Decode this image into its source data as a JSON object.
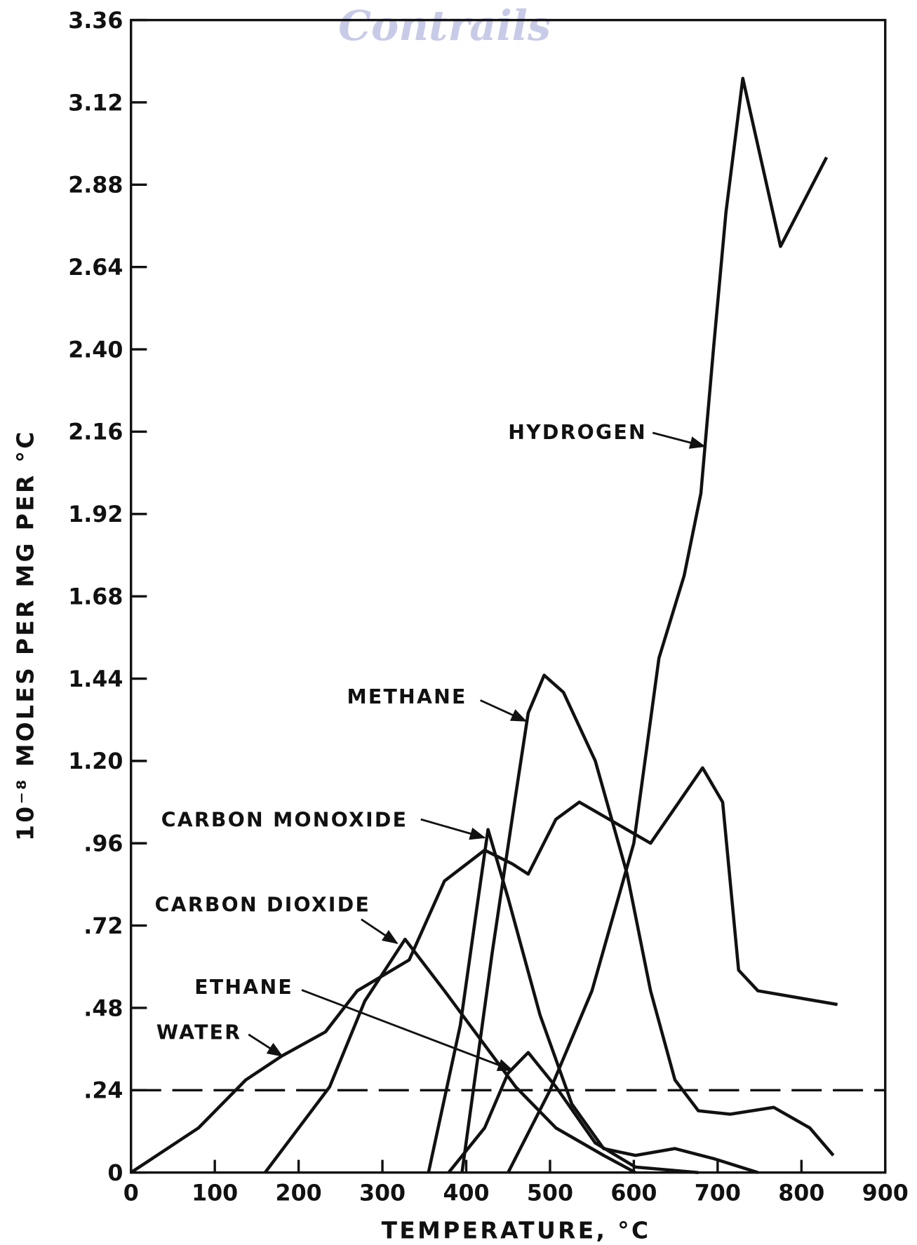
{
  "watermark": "Contrails",
  "chart_data": {
    "type": "line",
    "xlabel": "TEMPERATURE, °C",
    "ylabel": "10⁻⁸ MOLES PER MG PER °C",
    "xlim": [
      0,
      900
    ],
    "xticks": [
      0,
      100,
      200,
      300,
      400,
      500,
      600,
      700,
      800,
      900
    ],
    "ylim": [
      0,
      3.36
    ],
    "yticks": [
      0,
      {
        "value": 0.24,
        "label": ".24"
      },
      {
        "value": 0.48,
        "label": ".48"
      },
      {
        "value": 0.72,
        "label": ".72"
      },
      {
        "value": 0.96,
        "label": ".96"
      },
      {
        "value": 1.2,
        "label": "1.20"
      },
      {
        "value": 1.44,
        "label": "1.44"
      },
      {
        "value": 1.68,
        "label": "1.68"
      },
      {
        "value": 1.92,
        "label": "1.92"
      },
      {
        "value": 2.16,
        "label": "2.16"
      },
      {
        "value": 2.4,
        "label": "2.40"
      },
      {
        "value": 2.64,
        "label": "2.64"
      },
      {
        "value": 2.88,
        "label": "2.88"
      },
      {
        "value": 3.12,
        "label": "3.12"
      },
      {
        "value": 3.36,
        "label": "3.36"
      }
    ],
    "reference_line": 0.24,
    "series": [
      {
        "name": "HYDROGEN",
        "color": "#111111",
        "x": [
          450,
          500,
          550,
          600,
          630,
          660,
          680,
          695,
          710,
          730,
          775,
          830
        ],
        "values": [
          0,
          0.24,
          0.53,
          0.96,
          1.5,
          1.74,
          1.98,
          2.4,
          2.8,
          3.19,
          2.7,
          2.96
        ]
      },
      {
        "name": "METHANE",
        "color": "#111111",
        "x": [
          395,
          431,
          459,
          474,
          493,
          516,
          554,
          592,
          620,
          649,
          677,
          715,
          767,
          810,
          838
        ],
        "values": [
          0,
          0.64,
          1.1,
          1.34,
          1.45,
          1.4,
          1.2,
          0.87,
          0.53,
          0.27,
          0.18,
          0.17,
          0.19,
          0.13,
          0.05
        ]
      },
      {
        "name": "CARBON MONOXIDE",
        "color": "#111111",
        "x": [
          355,
          393,
          412,
          426,
          450,
          488,
          526,
          564,
          602,
          649,
          696,
          748
        ],
        "values": [
          0,
          0.43,
          0.76,
          1.0,
          0.8,
          0.46,
          0.2,
          0.07,
          0.05,
          0.07,
          0.04,
          0
        ]
      },
      {
        "name": "CARBON DIOXIDE",
        "color": "#111111",
        "x": [
          160,
          237,
          279,
          327,
          374,
          459,
          507,
          564,
          602
        ],
        "values": [
          0,
          0.25,
          0.5,
          0.68,
          0.53,
          0.25,
          0.13,
          0.05,
          0
        ]
      },
      {
        "name": "ETHANE",
        "color": "#111111",
        "x": [
          379,
          422,
          450,
          474,
          507,
          554,
          602,
          677
        ],
        "values": [
          0,
          0.13,
          0.29,
          0.35,
          0.25,
          0.086,
          0.016,
          0
        ]
      },
      {
        "name": "WATER",
        "color": "#111111",
        "x": [
          0,
          80.5,
          137,
          180,
          232,
          270,
          332,
          374,
          422,
          455,
          474,
          507,
          535,
          620,
          682,
          706,
          725,
          748,
          843
        ],
        "values": [
          0,
          0.13,
          0.27,
          0.34,
          0.41,
          0.53,
          0.62,
          0.85,
          0.94,
          0.9,
          0.87,
          1.03,
          1.08,
          0.96,
          1.18,
          1.08,
          0.59,
          0.53,
          0.49
        ]
      }
    ]
  }
}
